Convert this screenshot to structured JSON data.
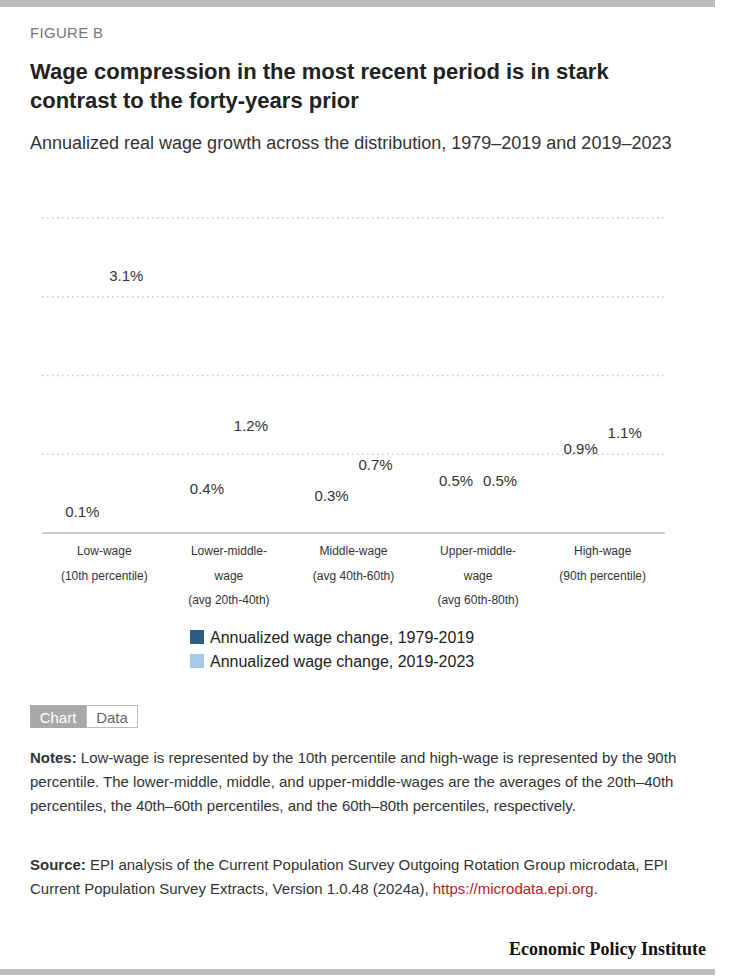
{
  "chart_data": {
    "type": "bar",
    "figure_label": "FIGURE B",
    "title": "Wage compression in the most recent period is in stark contrast to the forty-years prior",
    "subtitle": "Annualized real wage growth across the distribution, 1979–2019 and 2019–2023",
    "categories": [
      "Low-wage (10th percentile)",
      "Lower-middle-wage (avg 20th-40th)",
      "Middle-wage (avg 40th-60th)",
      "Upper-middle-wage (avg 60th-80th)",
      "High-wage (90th percentile)"
    ],
    "series": [
      {
        "name": "Annualized wage change, 1979-2019",
        "color": "#2c5d82",
        "values": [
          0.1,
          0.4,
          0.3,
          0.5,
          0.9
        ],
        "value_labels": [
          "0.1%",
          "0.4%",
          "0.3%",
          "0.5%",
          "0.9%"
        ]
      },
      {
        "name": "Annualized wage change, 2019-2023",
        "color": "#a4c9ea",
        "values": [
          3.1,
          1.2,
          0.7,
          0.5,
          1.1
        ],
        "value_labels": [
          "3.1%",
          "1.2%",
          "0.7%",
          "0.5%",
          "1.1%"
        ]
      }
    ],
    "ylim": [
      0,
      4
    ],
    "yticks": [
      0,
      1,
      2,
      3,
      4
    ],
    "grid": true,
    "data_labels": true,
    "tick_labels": "x",
    "legend": "bottom",
    "tabs": [
      "Chart",
      "Data"
    ],
    "notes_label": "Notes:",
    "notes": "Low-wage is represented by the 10th percentile and high-wage is represented by the 90th percentile. The lower-middle, middle, and upper-middle-wages are the averages of the 20th–40th percentiles, the 40th–60th percentiles, and the 60th–80th percentiles, respectively.",
    "source_label": "Source:",
    "source": "EPI analysis of the Current Population Survey Outgoing Rotation Group microdata, EPI Current Population Survey Extracts, Version 1.0.48 (2024a), https://microdata.epi.org.",
    "source_link": "https://microdata.epi.org",
    "publisher": "Economic Policy Institute"
  }
}
